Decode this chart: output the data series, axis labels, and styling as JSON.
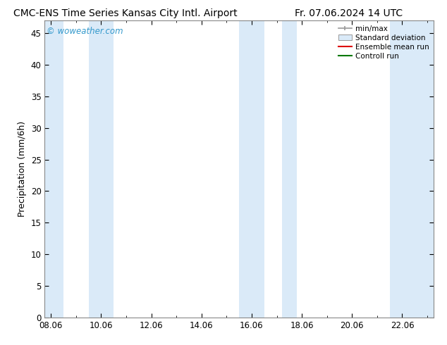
{
  "title_left": "CMC-ENS Time Series Kansas City Intl. Airport",
  "title_right": "Fr. 07.06.2024 14 UTC",
  "ylabel": "Precipitation (mm/6h)",
  "watermark": "© woweather.com",
  "x_tick_labels": [
    "08.06",
    "10.06",
    "12.06",
    "14.06",
    "16.06",
    "18.06",
    "20.06",
    "22.06"
  ],
  "x_tick_positions": [
    0,
    2,
    4,
    6,
    8,
    10,
    12,
    14
  ],
  "x_min": -0.25,
  "x_max": 15.25,
  "y_min": 0,
  "y_max": 47,
  "y_ticks": [
    0,
    5,
    10,
    15,
    20,
    25,
    30,
    35,
    40,
    45
  ],
  "shaded_bands": [
    {
      "x_start": -0.25,
      "x_end": 0.5
    },
    {
      "x_start": 1.5,
      "x_end": 2.5
    },
    {
      "x_start": 7.5,
      "x_end": 8.5
    },
    {
      "x_start": 9.2,
      "x_end": 9.8
    },
    {
      "x_start": 13.5,
      "x_end": 15.25
    }
  ],
  "band_color": "#daeaf8",
  "bg_color": "#ffffff",
  "plot_bg_color": "#ffffff",
  "legend_labels": [
    "min/max",
    "Standard deviation",
    "Ensemble mean run",
    "Controll run"
  ],
  "legend_colors": [
    "#999999",
    "#c5d8ed",
    "#dd0000",
    "#007700"
  ],
  "title_fontsize": 10,
  "label_fontsize": 9,
  "tick_fontsize": 8.5,
  "watermark_color": "#3399cc",
  "spine_color": "#888888"
}
